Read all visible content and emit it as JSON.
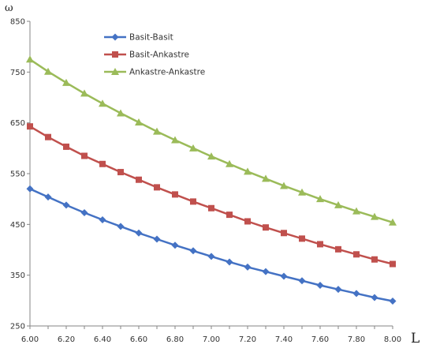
{
  "chart_data": {
    "type": "line",
    "ylabel": "ω",
    "xlabel": "L",
    "xlim": [
      6.0,
      8.0
    ],
    "ylim": [
      250,
      850
    ],
    "x_ticks": [
      "6.00",
      "6.20",
      "6.40",
      "6.60",
      "6.80",
      "7.00",
      "7.20",
      "7.40",
      "7.60",
      "7.80",
      "8.00"
    ],
    "y_ticks": [
      "250",
      "350",
      "450",
      "550",
      "650",
      "750",
      "850"
    ],
    "legend_position": "top-left",
    "grid": false,
    "x": [
      6.0,
      6.1,
      6.2,
      6.3,
      6.4,
      6.5,
      6.6,
      6.7,
      6.8,
      6.9,
      7.0,
      7.1,
      7.2,
      7.3,
      7.4,
      7.5,
      7.6,
      7.7,
      7.8,
      7.9,
      8.0
    ],
    "series": [
      {
        "name": "Basit-Basit",
        "color": "#4472C4",
        "marker": "diamond",
        "values": [
          520,
          504,
          488,
          473,
          459,
          446,
          433,
          421,
          409,
          398,
          387,
          376,
          366,
          357,
          348,
          339,
          330,
          322,
          314,
          306,
          299
        ]
      },
      {
        "name": "Basit-Ankastre",
        "color": "#C0504D",
        "marker": "square",
        "values": [
          643,
          622,
          603,
          585,
          569,
          553,
          538,
          523,
          509,
          495,
          482,
          469,
          456,
          444,
          433,
          422,
          411,
          401,
          391,
          381,
          372
        ]
      },
      {
        "name": "Ankastre-Ankastre",
        "color": "#9BBB59",
        "marker": "triangle",
        "values": [
          775,
          751,
          729,
          708,
          688,
          669,
          651,
          633,
          616,
          600,
          584,
          569,
          554,
          540,
          526,
          513,
          500,
          488,
          476,
          465,
          454
        ]
      }
    ]
  }
}
